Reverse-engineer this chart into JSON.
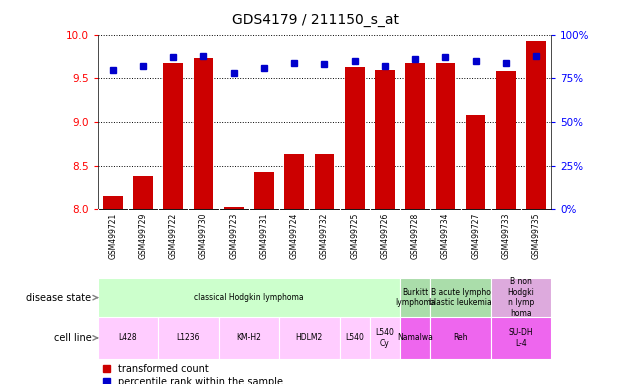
{
  "title": "GDS4179 / 211150_s_at",
  "samples": [
    "GSM499721",
    "GSM499729",
    "GSM499722",
    "GSM499730",
    "GSM499723",
    "GSM499731",
    "GSM499724",
    "GSM499732",
    "GSM499725",
    "GSM499726",
    "GSM499728",
    "GSM499734",
    "GSM499727",
    "GSM499733",
    "GSM499735"
  ],
  "transformed_counts": [
    8.15,
    8.38,
    9.67,
    9.73,
    8.03,
    8.43,
    8.63,
    8.63,
    9.63,
    9.6,
    9.68,
    9.68,
    9.08,
    9.58,
    9.93
  ],
  "percentile_ranks": [
    80,
    82,
    87,
    88,
    78,
    81,
    84,
    83,
    85,
    82,
    86,
    87,
    85,
    84,
    88
  ],
  "ylim_left": [
    8.0,
    10.0
  ],
  "ylim_right": [
    0,
    100
  ],
  "yticks_left": [
    8.0,
    8.5,
    9.0,
    9.5,
    10.0
  ],
  "yticks_right": [
    0,
    25,
    50,
    75,
    100
  ],
  "bar_color": "#cc0000",
  "dot_color": "#0000cc",
  "ds_items": [
    [
      "classical Hodgkin lymphoma",
      0,
      9,
      "#ccffcc"
    ],
    [
      "Burkitt\nlymphoma",
      10,
      10,
      "#aaddaa"
    ],
    [
      "B acute lympho\nblastic leukemia",
      11,
      12,
      "#aaddaa"
    ],
    [
      "B non\nHodgki\nn lymp\nhoma",
      13,
      14,
      "#ddaadd"
    ]
  ],
  "cl_items": [
    [
      "L428",
      0,
      1,
      "#ffccff"
    ],
    [
      "L1236",
      2,
      3,
      "#ffccff"
    ],
    [
      "KM-H2",
      4,
      5,
      "#ffccff"
    ],
    [
      "HDLM2",
      6,
      7,
      "#ffccff"
    ],
    [
      "L540",
      8,
      8,
      "#ffccff"
    ],
    [
      "L540\nCy",
      9,
      9,
      "#ffccff"
    ],
    [
      "Namalwa",
      10,
      10,
      "#ee66ee"
    ],
    [
      "Reh",
      11,
      12,
      "#ee66ee"
    ],
    [
      "SU-DH\nL-4",
      13,
      14,
      "#ee66ee"
    ]
  ]
}
